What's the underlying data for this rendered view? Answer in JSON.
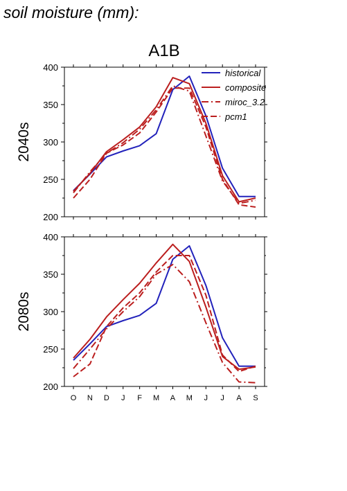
{
  "page_title": "soil moisture (mm):",
  "scenario_title": "A1B",
  "colors": {
    "historical": "#2222bb",
    "composite": "#bb1e1e",
    "miroc_3.2": "#bb1e1e",
    "pcm1": "#bb1e1e"
  },
  "chart_data": [
    {
      "type": "line",
      "panel_label": "2040s",
      "title": "A1B",
      "xlabel": "",
      "ylabel": "",
      "categories": [
        "O",
        "N",
        "D",
        "J",
        "F",
        "M",
        "A",
        "M",
        "J",
        "J",
        "A",
        "S"
      ],
      "ylim": [
        200,
        400
      ],
      "yticks": [
        200,
        250,
        300,
        350,
        400
      ],
      "grid": false,
      "legend_position": "top-right",
      "series": [
        {
          "name": "historical",
          "style": "solid",
          "values": [
            235,
            257,
            280,
            288,
            295,
            311,
            370,
            388,
            335,
            265,
            227,
            227
          ]
        },
        {
          "name": "composite",
          "style": "solid",
          "values": [
            234,
            258,
            287,
            303,
            320,
            347,
            386,
            378,
            325,
            255,
            220,
            225
          ]
        },
        {
          "name": "miroc_3.2",
          "style": "dashdot",
          "values": [
            232,
            260,
            285,
            299,
            317,
            343,
            375,
            368,
            308,
            248,
            218,
            222
          ]
        },
        {
          "name": "pcm1",
          "style": "dashed",
          "values": [
            225,
            250,
            285,
            296,
            312,
            340,
            372,
            372,
            320,
            250,
            216,
            213
          ]
        }
      ]
    },
    {
      "type": "line",
      "panel_label": "2080s",
      "xlabel": "",
      "ylabel": "",
      "categories": [
        "O",
        "N",
        "D",
        "J",
        "F",
        "M",
        "A",
        "M",
        "J",
        "J",
        "A",
        "S"
      ],
      "ylim": [
        200,
        400
      ],
      "yticks": [
        200,
        250,
        300,
        350,
        400
      ],
      "grid": false,
      "series": [
        {
          "name": "historical",
          "style": "solid",
          "values": [
            235,
            257,
            280,
            288,
            295,
            311,
            370,
            388,
            335,
            265,
            227,
            227
          ]
        },
        {
          "name": "composite",
          "style": "solid",
          "values": [
            238,
            263,
            293,
            316,
            338,
            365,
            390,
            367,
            306,
            240,
            223,
            226
          ]
        },
        {
          "name": "miroc_3.2",
          "style": "dashdot",
          "values": [
            224,
            250,
            277,
            300,
            320,
            350,
            363,
            340,
            285,
            232,
            206,
            205
          ]
        },
        {
          "name": "pcm1",
          "style": "dashed",
          "values": [
            213,
            230,
            280,
            305,
            325,
            353,
            375,
            375,
            322,
            242,
            220,
            227
          ]
        }
      ]
    }
  ]
}
